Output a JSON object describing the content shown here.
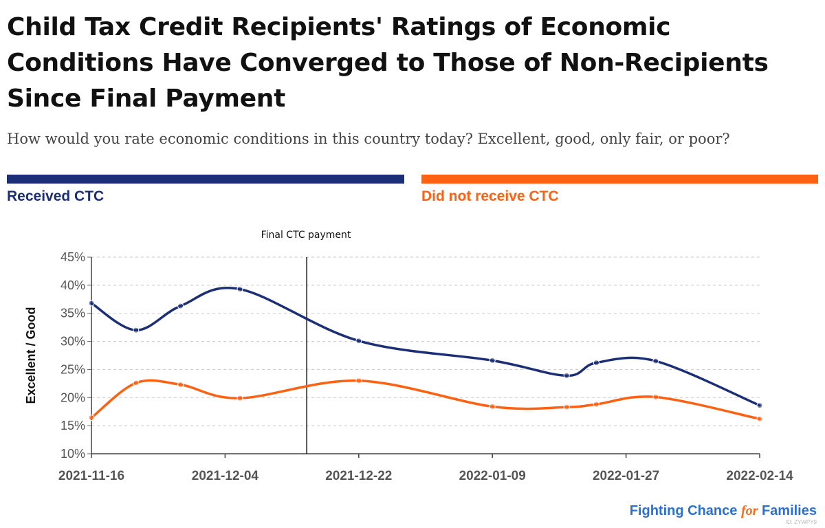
{
  "title": "Child Tax Credit Recipients' Ratings of Economic Conditions Have Converged to Those of Non-Recipients Since Final Payment",
  "subtitle": "How would you rate economic conditions in this country today? Excellent, good, only fair, or poor?",
  "legend": [
    {
      "label": "Received CTC",
      "color": "#1c2f76"
    },
    {
      "label": "Did not receive CTC",
      "color": "#ff6112"
    }
  ],
  "brand": {
    "part1": "Fighting Chance ",
    "part2": "for",
    "part3": " Families"
  },
  "credit": "ID: ZYWPY9",
  "chart_data": {
    "type": "line",
    "ylabel": "Excellent / Good",
    "xlabel": "",
    "ylim": [
      10,
      45
    ],
    "yticks": [
      "10%",
      "15%",
      "20%",
      "25%",
      "30%",
      "35%",
      "40%",
      "45%"
    ],
    "x_range": [
      "2021-11-16",
      "2022-02-14"
    ],
    "xticks": [
      "2021-11-16",
      "2021-12-04",
      "2021-12-22",
      "2022-01-09",
      "2022-01-27",
      "2022-02-14"
    ],
    "grid": true,
    "annotation": {
      "label": "Final CTC payment",
      "x": "2021-12-15"
    },
    "series": [
      {
        "name": "Received CTC",
        "color": "#1c2f76",
        "x": [
          "2021-11-16",
          "2021-11-22",
          "2021-11-28",
          "2021-12-06",
          "2021-12-22",
          "2022-01-09",
          "2022-01-19",
          "2022-01-23",
          "2022-01-31",
          "2022-02-14"
        ],
        "values": [
          36.8,
          32.0,
          36.3,
          39.3,
          30.1,
          26.6,
          23.9,
          26.2,
          26.5,
          18.6
        ]
      },
      {
        "name": "Did not receive CTC",
        "color": "#ff6112",
        "x": [
          "2021-11-16",
          "2021-11-22",
          "2021-11-28",
          "2021-12-06",
          "2021-12-22",
          "2022-01-09",
          "2022-01-19",
          "2022-01-23",
          "2022-01-31",
          "2022-02-14"
        ],
        "values": [
          16.4,
          22.6,
          22.3,
          19.9,
          23.0,
          18.4,
          18.3,
          18.8,
          20.1,
          16.2
        ]
      }
    ]
  }
}
